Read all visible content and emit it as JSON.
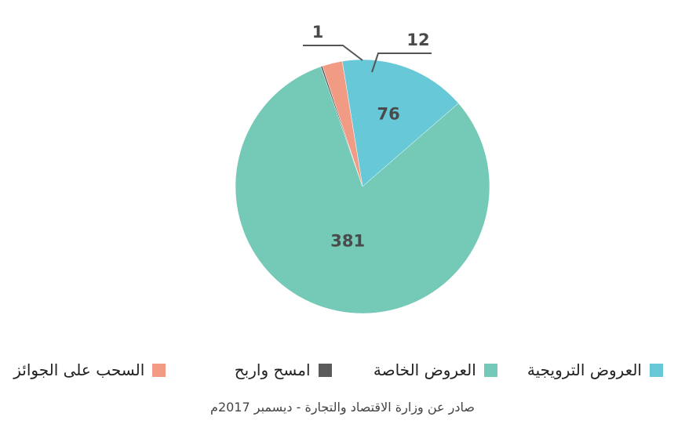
{
  "chart_data": {
    "type": "pie",
    "series": [
      {
        "name": "العروض الترويجية",
        "color": "#67c9d8",
        "values": [
          76
        ]
      },
      {
        "name": "العروض الخاصة",
        "color": "#74c9b7",
        "values": [
          381
        ]
      },
      {
        "name": "امسح واربح",
        "color": "#5b5b5b",
        "values": [
          1
        ]
      },
      {
        "name": "السحب على الجوائز",
        "color": "#f19b85",
        "values": [
          12
        ]
      }
    ],
    "source": "صادر عن وزارة الاقتصاد والتجارة - ديسمبر 2017م"
  }
}
